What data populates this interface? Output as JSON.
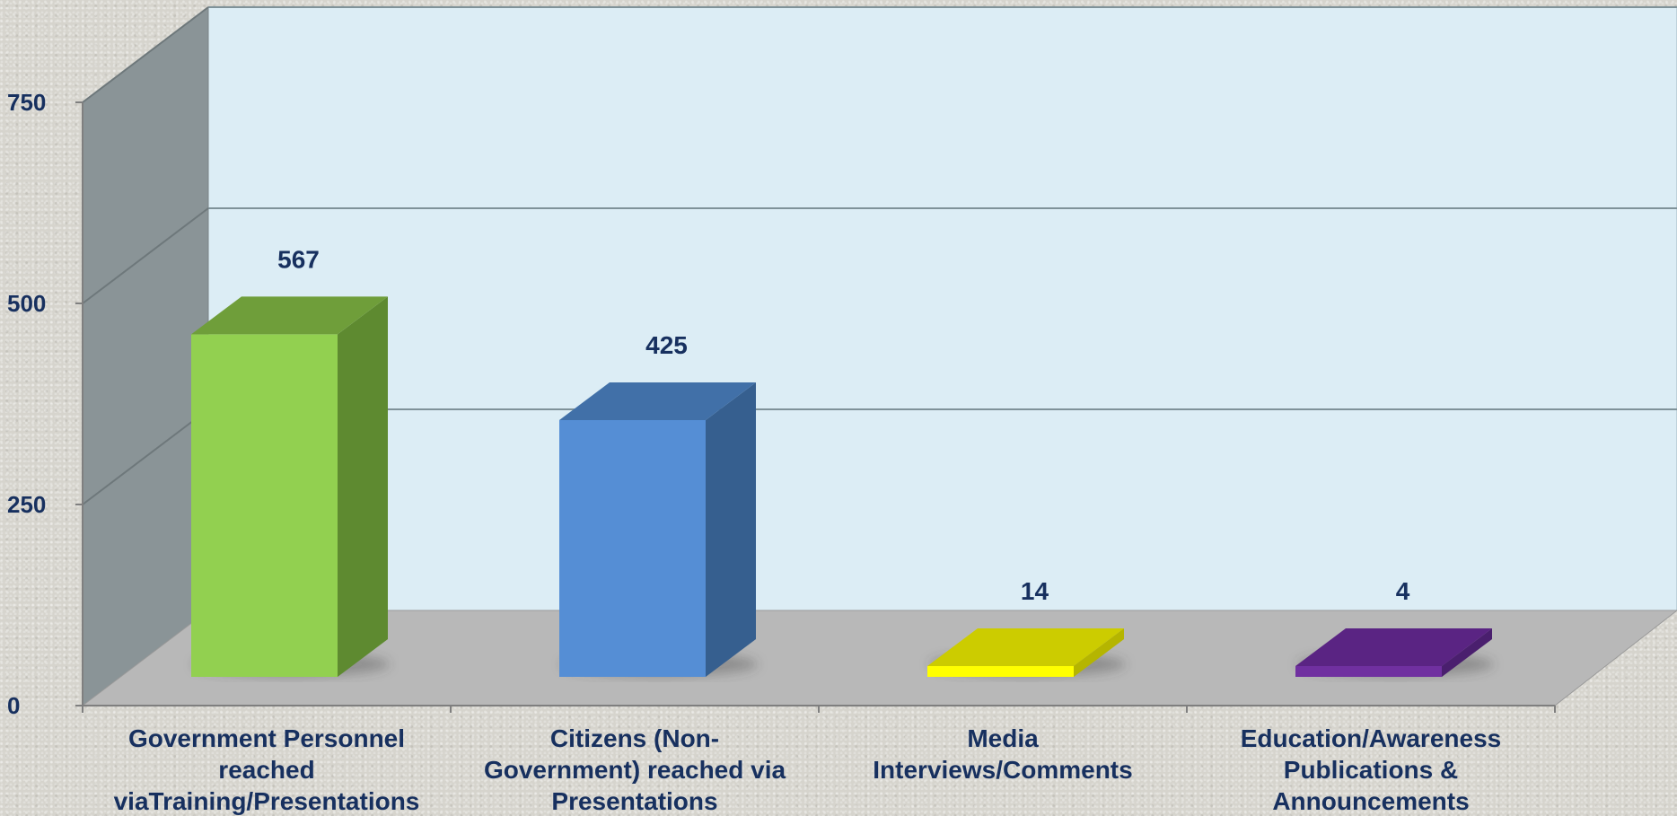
{
  "chart_data": {
    "type": "bar",
    "categories": [
      "Government Personnel reached viaTraining/Presentations",
      "Citizens (Non-Government) reached via Presentations",
      "Media Interviews/Comments",
      "Education/Awareness Publications & Announcements"
    ],
    "category_label_lines": [
      [
        "Government Personnel",
        "reached",
        "viaTraining/Presentations"
      ],
      [
        "Citizens (Non-",
        "Government) reached via",
        "Presentations"
      ],
      [
        "Media",
        "Interviews/Comments"
      ],
      [
        "Education/Awareness",
        "Publications &",
        "Announcements"
      ]
    ],
    "values": [
      567,
      425,
      14,
      4
    ],
    "data_labels": [
      "567",
      "425",
      "14",
      "4"
    ],
    "colors": [
      {
        "front": "#92d050",
        "side": "#5e8a30",
        "top": "#6f9e3a"
      },
      {
        "front": "#558ed5",
        "side": "#365f8f",
        "top": "#4170a8"
      },
      {
        "front": "#ffff00",
        "side": "#b5b500",
        "top": "#cccc00"
      },
      {
        "front": "#7030a0",
        "side": "#4a1f6e",
        "top": "#5a2483"
      }
    ],
    "y_ticks": [
      "0",
      "250",
      "500",
      "750"
    ],
    "ylim": [
      0,
      750
    ],
    "grid": true,
    "legend": "none",
    "style": "3d-column",
    "wall_color": "#dcedf5",
    "side_wall_color": "#8a9497",
    "floor_color": "#b8b8b8"
  }
}
